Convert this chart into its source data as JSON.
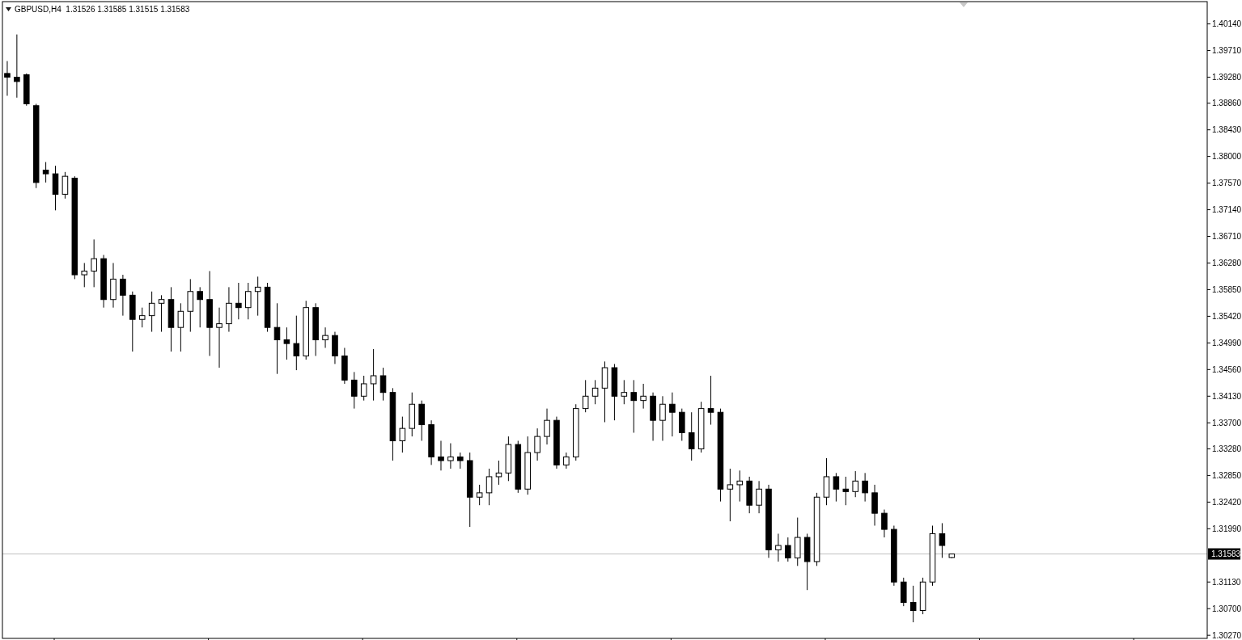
{
  "chart_data": {
    "type": "candlestick",
    "title": "GBPUSD,H4  1.31526 1.31585 1.31515 1.31583",
    "color": "#000000",
    "categories": [
      null,
      null,
      null,
      null,
      null,
      null,
      null,
      null,
      null,
      null,
      null,
      null,
      null,
      null,
      null,
      null,
      null,
      null,
      null,
      null,
      null,
      null,
      null,
      null,
      null,
      null,
      null,
      null,
      null,
      null,
      null,
      null,
      null,
      null,
      null,
      null,
      null,
      null,
      null,
      null,
      null,
      null,
      null,
      null,
      null,
      null,
      null,
      null,
      null,
      null,
      null,
      null,
      null,
      null,
      null,
      null,
      null,
      null,
      null,
      null,
      null,
      null,
      null,
      null,
      null,
      null,
      null,
      null,
      null,
      null,
      null,
      null,
      null,
      null,
      null,
      null,
      null,
      null,
      null,
      null,
      null,
      null,
      null,
      null,
      null,
      null,
      null,
      null,
      null,
      null,
      null,
      null,
      null,
      null,
      null,
      null,
      null,
      null,
      null,
      null,
      null,
      null,
      null,
      null,
      null,
      null,
      null,
      null,
      null,
      null,
      null,
      null,
      null,
      null,
      null,
      null,
      null,
      null,
      null,
      null,
      null,
      null,
      null,
      null,
      null
    ],
    "ohlc": [
      [
        1.3934,
        1.3954,
        1.3898,
        1.3928
      ],
      [
        1.3928,
        1.3997,
        1.3895,
        1.3921
      ],
      [
        1.3932,
        1.3934,
        1.3882,
        1.3885
      ],
      [
        1.3882,
        1.3885,
        1.3749,
        1.3758
      ],
      [
        1.3778,
        1.3791,
        1.3758,
        1.3772
      ],
      [
        1.3772,
        1.3785,
        1.3713,
        1.3739
      ],
      [
        1.3739,
        1.3775,
        1.3732,
        1.3768
      ],
      [
        1.3765,
        1.3768,
        1.3602,
        1.3609
      ],
      [
        1.3609,
        1.3628,
        1.3589,
        1.3615
      ],
      [
        1.3615,
        1.3666,
        1.3589,
        1.3635
      ],
      [
        1.3635,
        1.3641,
        1.3556,
        1.3569
      ],
      [
        1.3569,
        1.3628,
        1.3556,
        1.3602
      ],
      [
        1.3602,
        1.3609,
        1.3543,
        1.3576
      ],
      [
        1.3576,
        1.3582,
        1.3485,
        1.3537
      ],
      [
        1.3537,
        1.3556,
        1.3524,
        1.3543
      ],
      [
        1.3543,
        1.3582,
        1.3517,
        1.3563
      ],
      [
        1.3563,
        1.3576,
        1.3517,
        1.3569
      ],
      [
        1.3569,
        1.3589,
        1.3485,
        1.3524
      ],
      [
        1.3524,
        1.3563,
        1.3485,
        1.355
      ],
      [
        1.355,
        1.3602,
        1.3517,
        1.3582
      ],
      [
        1.3582,
        1.3589,
        1.3524,
        1.3569
      ],
      [
        1.3569,
        1.3615,
        1.3478,
        1.3524
      ],
      [
        1.3524,
        1.3556,
        1.3459,
        1.353
      ],
      [
        1.353,
        1.3589,
        1.3517,
        1.3563
      ],
      [
        1.3563,
        1.3596,
        1.3537,
        1.3556
      ],
      [
        1.3556,
        1.3596,
        1.3537,
        1.3582
      ],
      [
        1.3582,
        1.3606,
        1.3543,
        1.3589
      ],
      [
        1.3589,
        1.3596,
        1.3517,
        1.3524
      ],
      [
        1.3524,
        1.3563,
        1.3449,
        1.3504
      ],
      [
        1.3504,
        1.3524,
        1.3472,
        1.3498
      ],
      [
        1.3498,
        1.3543,
        1.3455,
        1.3478
      ],
      [
        1.3478,
        1.3567,
        1.3472,
        1.3556
      ],
      [
        1.3556,
        1.3563,
        1.3478,
        1.3504
      ],
      [
        1.3504,
        1.3524,
        1.3491,
        1.3511
      ],
      [
        1.3511,
        1.3517,
        1.3465,
        1.3478
      ],
      [
        1.3478,
        1.3491,
        1.3433,
        1.3439
      ],
      [
        1.3439,
        1.3452,
        1.3393,
        1.3413
      ],
      [
        1.3413,
        1.3446,
        1.3406,
        1.3433
      ],
      [
        1.3433,
        1.3489,
        1.3406,
        1.3446
      ],
      [
        1.3446,
        1.3459,
        1.3406,
        1.3419
      ],
      [
        1.3419,
        1.3426,
        1.3309,
        1.3341
      ],
      [
        1.3341,
        1.338,
        1.3322,
        1.3361
      ],
      [
        1.3361,
        1.3419,
        1.3348,
        1.34
      ],
      [
        1.34,
        1.3406,
        1.3341,
        1.3367
      ],
      [
        1.3367,
        1.3374,
        1.3302,
        1.3315
      ],
      [
        1.3315,
        1.3341,
        1.3293,
        1.3309
      ],
      [
        1.3309,
        1.3337,
        1.3296,
        1.3315
      ],
      [
        1.3315,
        1.3322,
        1.3296,
        1.3309
      ],
      [
        1.3309,
        1.3322,
        1.3202,
        1.325
      ],
      [
        1.325,
        1.327,
        1.3237,
        1.3257
      ],
      [
        1.3257,
        1.3296,
        1.3237,
        1.3283
      ],
      [
        1.3283,
        1.3309,
        1.327,
        1.3289
      ],
      [
        1.3289,
        1.3348,
        1.3276,
        1.3335
      ],
      [
        1.3335,
        1.3341,
        1.3257,
        1.3263
      ],
      [
        1.3263,
        1.3348,
        1.3254,
        1.3322
      ],
      [
        1.3322,
        1.3361,
        1.3309,
        1.3348
      ],
      [
        1.3348,
        1.3393,
        1.3335,
        1.3374
      ],
      [
        1.3374,
        1.338,
        1.3296,
        1.3302
      ],
      [
        1.3302,
        1.3322,
        1.3296,
        1.3315
      ],
      [
        1.3315,
        1.34,
        1.3309,
        1.3393
      ],
      [
        1.3393,
        1.3439,
        1.3387,
        1.3413
      ],
      [
        1.3413,
        1.3439,
        1.34,
        1.3426
      ],
      [
        1.3426,
        1.3469,
        1.3371,
        1.3459
      ],
      [
        1.3459,
        1.3465,
        1.3374,
        1.3413
      ],
      [
        1.3413,
        1.3439,
        1.34,
        1.3419
      ],
      [
        1.3419,
        1.3439,
        1.3354,
        1.3406
      ],
      [
        1.3406,
        1.3433,
        1.3393,
        1.3413
      ],
      [
        1.3413,
        1.3419,
        1.3341,
        1.3374
      ],
      [
        1.3374,
        1.3413,
        1.3341,
        1.34
      ],
      [
        1.34,
        1.3419,
        1.3348,
        1.3387
      ],
      [
        1.3387,
        1.3393,
        1.3341,
        1.3354
      ],
      [
        1.3354,
        1.3387,
        1.3309,
        1.3328
      ],
      [
        1.3328,
        1.3404,
        1.3322,
        1.3393
      ],
      [
        1.3393,
        1.3446,
        1.3367,
        1.3387
      ],
      [
        1.3387,
        1.3393,
        1.3243,
        1.3263
      ],
      [
        1.3263,
        1.3296,
        1.3211,
        1.327
      ],
      [
        1.327,
        1.3293,
        1.3243,
        1.3276
      ],
      [
        1.3276,
        1.3283,
        1.3224,
        1.3237
      ],
      [
        1.3237,
        1.3276,
        1.3224,
        1.3263
      ],
      [
        1.3263,
        1.327,
        1.3152,
        1.3165
      ],
      [
        1.3165,
        1.3191,
        1.3146,
        1.3172
      ],
      [
        1.3172,
        1.3185,
        1.3146,
        1.3152
      ],
      [
        1.3152,
        1.3217,
        1.3139,
        1.3185
      ],
      [
        1.3185,
        1.3191,
        1.31,
        1.3146
      ],
      [
        1.3146,
        1.3257,
        1.3139,
        1.325
      ],
      [
        1.325,
        1.3313,
        1.3237,
        1.3283
      ],
      [
        1.3283,
        1.3289,
        1.3243,
        1.3263
      ],
      [
        1.3263,
        1.3283,
        1.3237,
        1.3259
      ],
      [
        1.3259,
        1.3292,
        1.325,
        1.3276
      ],
      [
        1.3276,
        1.3289,
        1.3243,
        1.3257
      ],
      [
        1.3257,
        1.327,
        1.3204,
        1.3224
      ],
      [
        1.3224,
        1.323,
        1.3185,
        1.3198
      ],
      [
        1.3198,
        1.3204,
        1.3107,
        1.3113
      ],
      [
        1.3113,
        1.312,
        1.3074,
        1.308
      ],
      [
        1.308,
        1.3107,
        1.3048,
        1.3067
      ],
      [
        1.3067,
        1.312,
        1.3061,
        1.3113
      ],
      [
        1.3113,
        1.3204,
        1.3107,
        1.3191
      ],
      [
        1.3191,
        1.3208,
        1.3152,
        1.3172
      ],
      [
        1.31526,
        1.31585,
        1.31515,
        1.31583
      ],
      null,
      null,
      null,
      null,
      null,
      null,
      null,
      null,
      null,
      null,
      null,
      null,
      null,
      null,
      null,
      null,
      null,
      null,
      null,
      null,
      null,
      null,
      null,
      null,
      null,
      null
    ],
    "ylim": [
      1.3022,
      1.405
    ],
    "yticks": [
      {
        "value": 1.4014,
        "label": "1.40140"
      },
      {
        "value": 1.3971,
        "label": "1.39710"
      },
      {
        "value": 1.3928,
        "label": "1.39280"
      },
      {
        "value": 1.3886,
        "label": "1.38860"
      },
      {
        "value": 1.3843,
        "label": "1.38430"
      },
      {
        "value": 1.38,
        "label": "1.38000"
      },
      {
        "value": 1.3757,
        "label": "1.37570"
      },
      {
        "value": 1.3714,
        "label": "1.37140"
      },
      {
        "value": 1.3671,
        "label": "1.36710"
      },
      {
        "value": 1.3628,
        "label": "1.36280"
      },
      {
        "value": 1.3585,
        "label": "1.35850"
      },
      {
        "value": 1.3542,
        "label": "1.35420"
      },
      {
        "value": 1.3499,
        "label": "1.34990"
      },
      {
        "value": 1.3456,
        "label": "1.34560"
      },
      {
        "value": 1.3413,
        "label": "1.34130"
      },
      {
        "value": 1.337,
        "label": "1.33700"
      },
      {
        "value": 1.3328,
        "label": "1.33280"
      },
      {
        "value": 1.3285,
        "label": "1.32850"
      },
      {
        "value": 1.3242,
        "label": "1.32420"
      },
      {
        "value": 1.3199,
        "label": "1.31990"
      },
      {
        "value": 1.3113,
        "label": "1.31130"
      },
      {
        "value": 1.307,
        "label": "1.30700"
      },
      {
        "value": 1.3027,
        "label": "1.30270"
      }
    ],
    "ref_lines": [
      {
        "axis": "y",
        "value": 1.31583,
        "label": "1.31583",
        "color": "#c0c0c0"
      }
    ],
    "grid": false
  }
}
